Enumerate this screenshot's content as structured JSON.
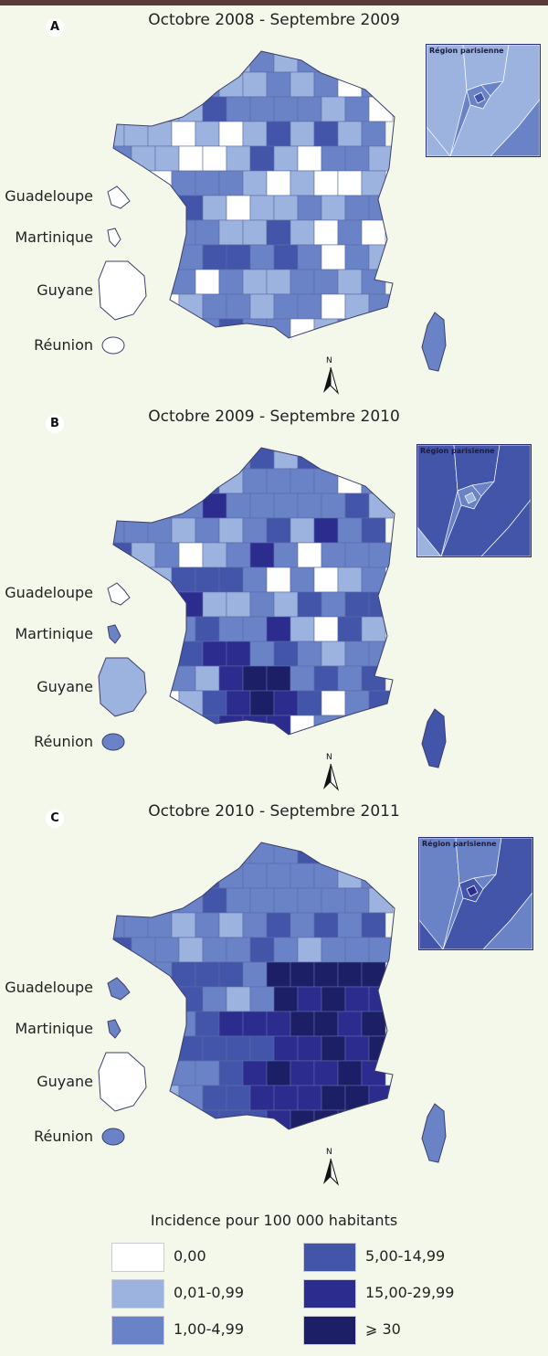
{
  "colors": {
    "c0": "#ffffff",
    "c1": "#9db3df",
    "c2": "#6a83c6",
    "c3": "#4355a8",
    "c4": "#2c2c8e",
    "c5": "#1d1f66",
    "border": "#3b3f6a",
    "page_bg": "#f3f8ea"
  },
  "panels": [
    {
      "letter": "A",
      "title": "Octobre 2008 - Septembre 2009",
      "inset_title": "Région parisienne",
      "territories": {
        "guadeloupe": "Guadeloupe",
        "martinique": "Martinique",
        "guyane": "Guyane",
        "reunion": "Réunion"
      },
      "north": "N",
      "overseas_classes": {
        "guadeloupe": 0,
        "martinique": 0,
        "guyane": 0,
        "reunion": 0,
        "corse": 2
      }
    },
    {
      "letter": "B",
      "title": "Octobre 2009 - Septembre 2010",
      "inset_title": "Région parisienne",
      "territories": {
        "guadeloupe": "Guadeloupe",
        "martinique": "Martinique",
        "guyane": "Guyane",
        "reunion": "Réunion"
      },
      "north": "N",
      "overseas_classes": {
        "guadeloupe": 0,
        "martinique": 2,
        "guyane": 1,
        "reunion": 2,
        "corse": 3
      }
    },
    {
      "letter": "C",
      "title": "Octobre 2010 - Septembre 2011",
      "inset_title": "Région parisienne",
      "territories": {
        "guadeloupe": "Guadeloupe",
        "martinique": "Martinique",
        "guyane": "Guyane",
        "reunion": "Réunion"
      },
      "north": "N",
      "overseas_classes": {
        "guadeloupe": 2,
        "martinique": 2,
        "guyane": 0,
        "reunion": 2,
        "corse": 2
      }
    }
  ],
  "legend": {
    "title": "Incidence pour 100 000 habitants",
    "items": [
      {
        "label": "0,00",
        "color": "#ffffff"
      },
      {
        "label": "0,01-0,99",
        "color": "#9db3df"
      },
      {
        "label": "1,00-4,99",
        "color": "#6a83c6"
      },
      {
        "label": "5,00-14,99",
        "color": "#4355a8"
      },
      {
        "label": "15,00-29,99",
        "color": "#2c2c8e"
      },
      {
        "label": "⩾ 30",
        "color": "#1d1f66"
      }
    ]
  }
}
